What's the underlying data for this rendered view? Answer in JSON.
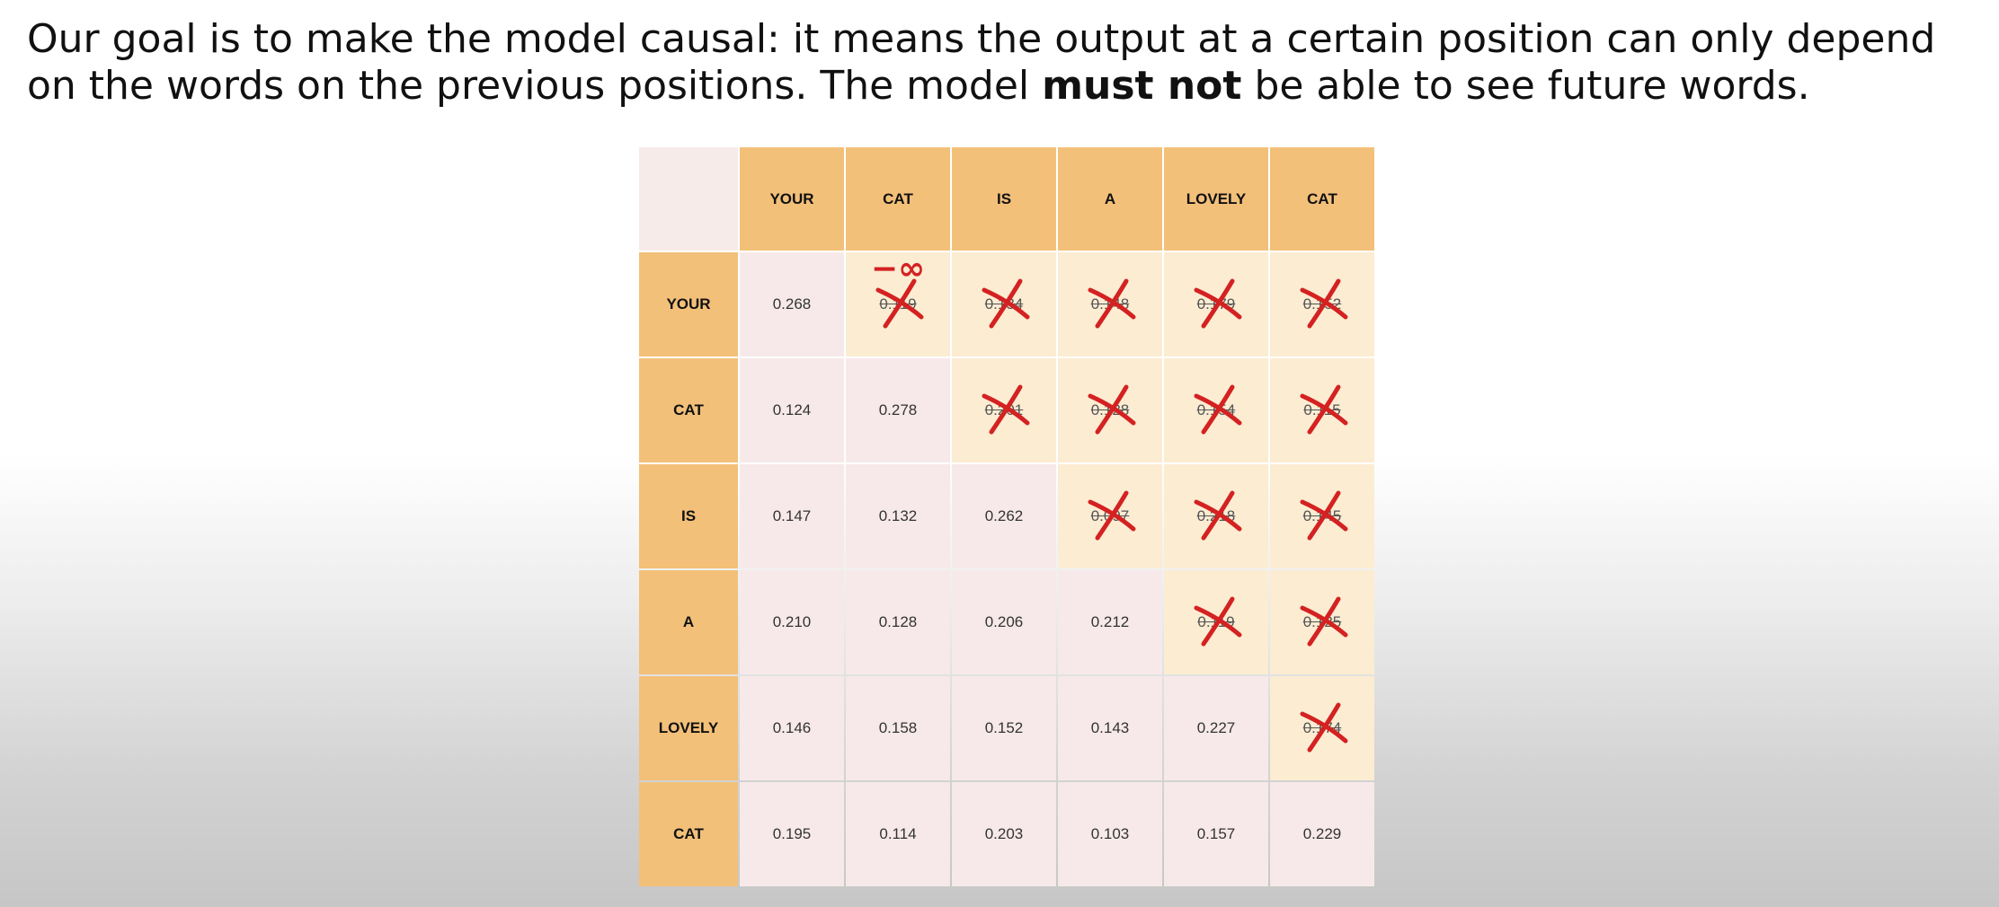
{
  "heading": {
    "part1": "Our goal is to make the model causal: it means the output at a certain position can only depend on the words on the previous positions. The model ",
    "emphasis": "must not",
    "part2": " be able to see future words."
  },
  "matrix": {
    "columns": [
      "YOUR",
      "CAT",
      "IS",
      "A",
      "LOVELY",
      "CAT"
    ],
    "rows": [
      {
        "label": "YOUR",
        "values": [
          "0.268",
          "0.119",
          "0.134",
          "0.148",
          "0.179",
          "0.152"
        ]
      },
      {
        "label": "CAT",
        "values": [
          "0.124",
          "0.278",
          "0.201",
          "0.128",
          "0.154",
          "0.115"
        ]
      },
      {
        "label": "IS",
        "values": [
          "0.147",
          "0.132",
          "0.262",
          "0.097",
          "0.218",
          "0.145"
        ]
      },
      {
        "label": "A",
        "values": [
          "0.210",
          "0.128",
          "0.206",
          "0.212",
          "0.119",
          "0.125"
        ]
      },
      {
        "label": "LOVELY",
        "values": [
          "0.146",
          "0.158",
          "0.152",
          "0.143",
          "0.227",
          "0.174"
        ]
      },
      {
        "label": "CAT",
        "values": [
          "0.195",
          "0.114",
          "0.203",
          "0.103",
          "0.157",
          "0.229"
        ]
      }
    ],
    "mask_annotation": "−∞",
    "mark_color": "#d42121"
  }
}
